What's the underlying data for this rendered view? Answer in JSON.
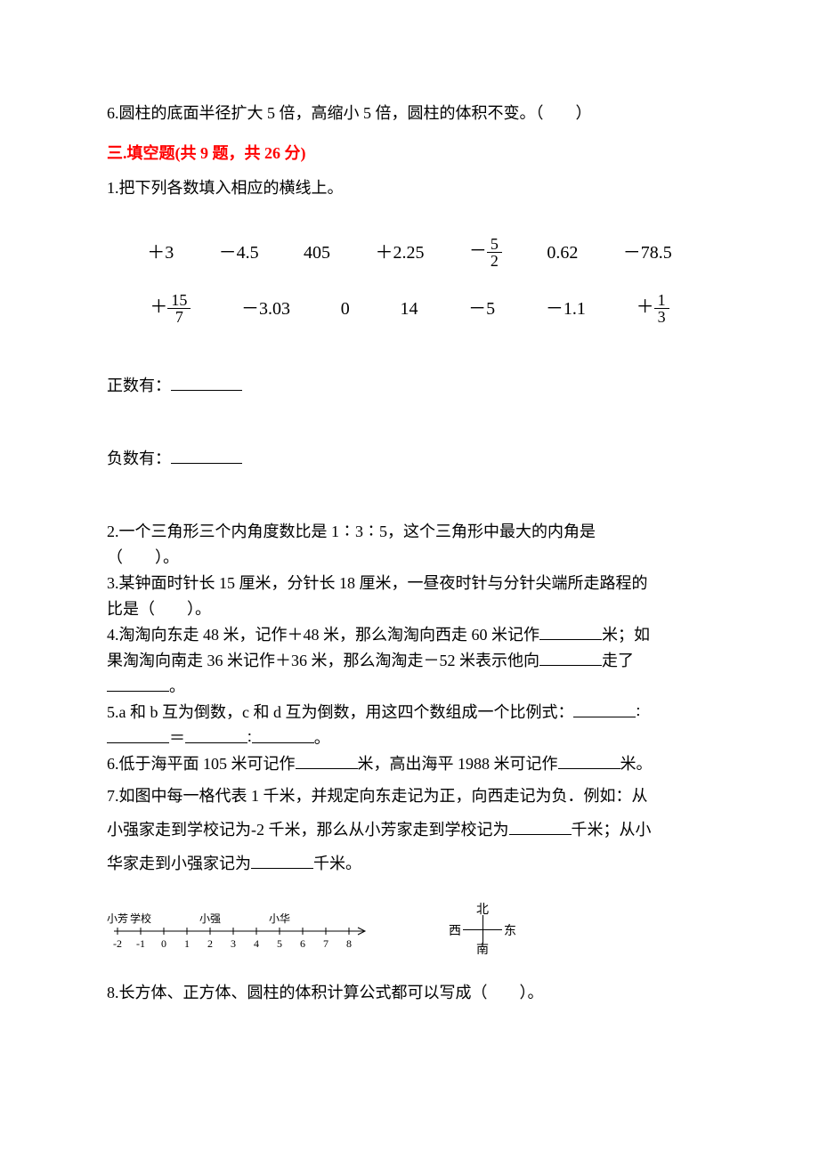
{
  "q6": "6.圆柱的底面半径扩大 5 倍，高缩小 5 倍，圆柱的体积不变。（　　）",
  "section3": {
    "title_prefix": "三.填空题",
    "title_suffix": "(共 9 题，共 26 分)",
    "title_color": "#ff0000"
  },
  "fill": {
    "q1": "1.把下列各数填入相应的横线上。",
    "numbers_row1": {
      "c1": "＋3",
      "c2": "－4.5",
      "c3": "405",
      "c4": "＋2.25",
      "c5_prefix": "－",
      "c5_num": "5",
      "c5_den": "2",
      "c6": "0.62",
      "c7": "－78.5"
    },
    "numbers_row2": {
      "c1_prefix": "＋",
      "c1_num": "15",
      "c1_den": "7",
      "c2": "－3.03",
      "c3": "0",
      "c4": "14",
      "c5": "－5",
      "c6": "－1.1",
      "c7_prefix": "＋",
      "c7_num": "1",
      "c7_den": "3"
    },
    "positive_label": "正数有：",
    "negative_label": "负数有：",
    "q2_a": "2.一个三角形三个内角度数比是 1∶3∶5，这个三角形中最大的内角是",
    "q2_b": "（　　）。",
    "q3_a": "3.某钟面时针长 15 厘米，分针长 18 厘米，一昼夜时针与分针尖端所走路程的",
    "q3_b": "比是（　　）。",
    "q4_a": "4.淘淘向东走 48 米，记作＋48 米，那么淘淘向西走 60 米记作",
    "q4_b": "米；如",
    "q4_c": "果淘淘向南走 36 米记作＋36 米，那么淘淘走－52 米表示他向",
    "q4_d": "走了",
    "q4_e": "。",
    "q5_a": "5.a 和 b 互为倒数，c 和 d 互为倒数，用这四个数组成一个比例式：",
    "q5_b": "∶",
    "q5_c": "＝",
    "q5_d": "∶",
    "q5_e": "。",
    "q6_a": "6.低于海平面 105 米可记作",
    "q6_b": "米，高出海平 1988 米可记作",
    "q6_c": "米。",
    "q7_a": "7.如图中每一格代表 1 千米，并规定向东走记为正，向西走记为负．例如：从",
    "q7_b": "小强家走到学校记为-2 千米，那么从小芳家走到学校记为",
    "q7_c": "千米；从小",
    "q7_d": "华家走到小强家记为",
    "q7_e": "千米。",
    "q8": "8.长方体、正方体、圆柱的体积计算公式都可以写成（　　）。"
  },
  "numline": {
    "labels_top": {
      "xf": "小芳",
      "xx": "学校",
      "xq": "小强",
      "xh": "小华"
    },
    "ticks": [
      "-2",
      "-1",
      "0",
      "1",
      "2",
      "3",
      "4",
      "5",
      "6",
      "7",
      "8"
    ],
    "axis_color": "#000000",
    "font_size": 12
  },
  "compass": {
    "n": "北",
    "s": "南",
    "w": "西",
    "e": "东"
  }
}
